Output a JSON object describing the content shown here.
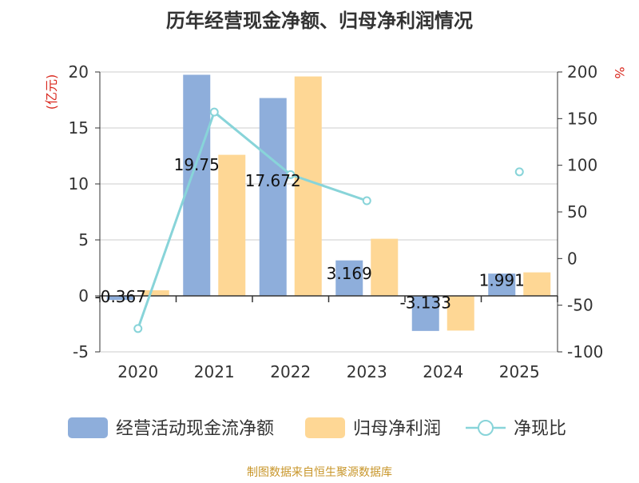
{
  "chart_data": {
    "type": "bar+line",
    "title": "历年经营现金净额、归母净利润情况",
    "categories": [
      "2020",
      "2021",
      "2022",
      "2023",
      "2024",
      "2025"
    ],
    "series": [
      {
        "name": "经营活动现金流净额",
        "type": "bar",
        "axis": "left",
        "values": [
          -0.367,
          19.75,
          17.672,
          3.169,
          -3.133,
          1.991
        ],
        "labels": [
          "-0.367",
          "19.75",
          "17.672",
          "3.169",
          "-3.133",
          "1.991"
        ]
      },
      {
        "name": "归母净利润",
        "type": "bar",
        "axis": "left",
        "values": [
          0.5,
          12.6,
          19.6,
          5.1,
          -3.1,
          2.1
        ]
      },
      {
        "name": "净现比",
        "type": "line",
        "axis": "right",
        "values": [
          -75,
          157,
          90,
          62,
          null,
          93
        ]
      }
    ],
    "y_left": {
      "label": "(亿元)",
      "min": -5,
      "max": 20,
      "ticks": [
        -5,
        0,
        5,
        10,
        15,
        20
      ]
    },
    "y_right": {
      "label": "%",
      "min": -100,
      "max": 200,
      "ticks": [
        -100,
        -50,
        0,
        50,
        100,
        150,
        200
      ]
    },
    "legend": {
      "position": "bottom"
    },
    "colors": {
      "cash": "#8eaedb",
      "profit": "#fed795",
      "ratio": "#88d4d9",
      "axis_label": "#d9281e",
      "title": "#333333",
      "source": "#c8962a"
    },
    "source": "制图数据来自恒生聚源数据库"
  }
}
